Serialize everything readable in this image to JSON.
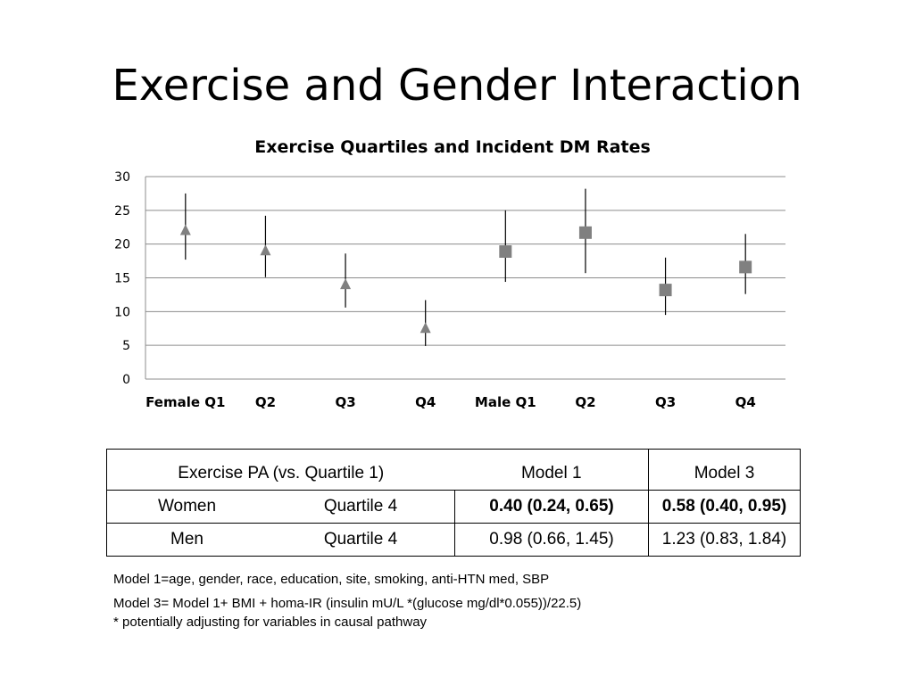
{
  "slide": {
    "title": "Exercise and Gender Interaction"
  },
  "chart_data": {
    "type": "scatter",
    "title": "Exercise Quartiles and Incident DM Rates",
    "categories": [
      "Female Q1",
      "Q2",
      "Q3",
      "Q4",
      "Male Q1",
      "Q2",
      "Q3",
      "Q4"
    ],
    "ylim": [
      0,
      30
    ],
    "yticks": [
      0,
      5,
      10,
      15,
      20,
      25,
      30
    ],
    "grid": true,
    "series": [
      {
        "marker": "triangle",
        "color": "#808080",
        "x_index": [
          0,
          1,
          2,
          3
        ],
        "values": [
          22,
          19,
          14,
          7.5
        ],
        "lower": [
          17.7,
          15.1,
          10.6,
          4.9
        ],
        "upper": [
          27.5,
          24.2,
          18.6,
          11.7
        ]
      },
      {
        "marker": "square",
        "color": "#808080",
        "x_index": [
          4,
          5,
          6,
          7
        ],
        "values": [
          18.9,
          21.7,
          13.2,
          16.6
        ],
        "lower": [
          14.4,
          15.7,
          9.5,
          12.6
        ],
        "upper": [
          25.0,
          28.2,
          18.0,
          21.5
        ]
      }
    ]
  },
  "table": {
    "header": {
      "col1": "Exercise PA (vs. Quartile 1)",
      "col2": "Model  1",
      "col3": "Model  3"
    },
    "rows": [
      {
        "group": "Women",
        "quartile": "Quartile 4",
        "model1": "0.40 (0.24, 0.65)",
        "model3": "0.58 (0.40, 0.95)"
      },
      {
        "group": "Men",
        "quartile": "Quartile 4",
        "model1": "0.98 (0.66, 1.45)",
        "model3": "1.23 (0.83, 1.84)"
      }
    ]
  },
  "notes": {
    "model1": "Model 1=age, gender, race, education, site, smoking, anti-HTN med, SBP",
    "model3": "Model 3= Model 1+ BMI + homa-IR (insulin mU/L *(glucose mg/dl*0.055))/22.5)",
    "footnote": "* potentially adjusting for variables in causal pathway"
  }
}
